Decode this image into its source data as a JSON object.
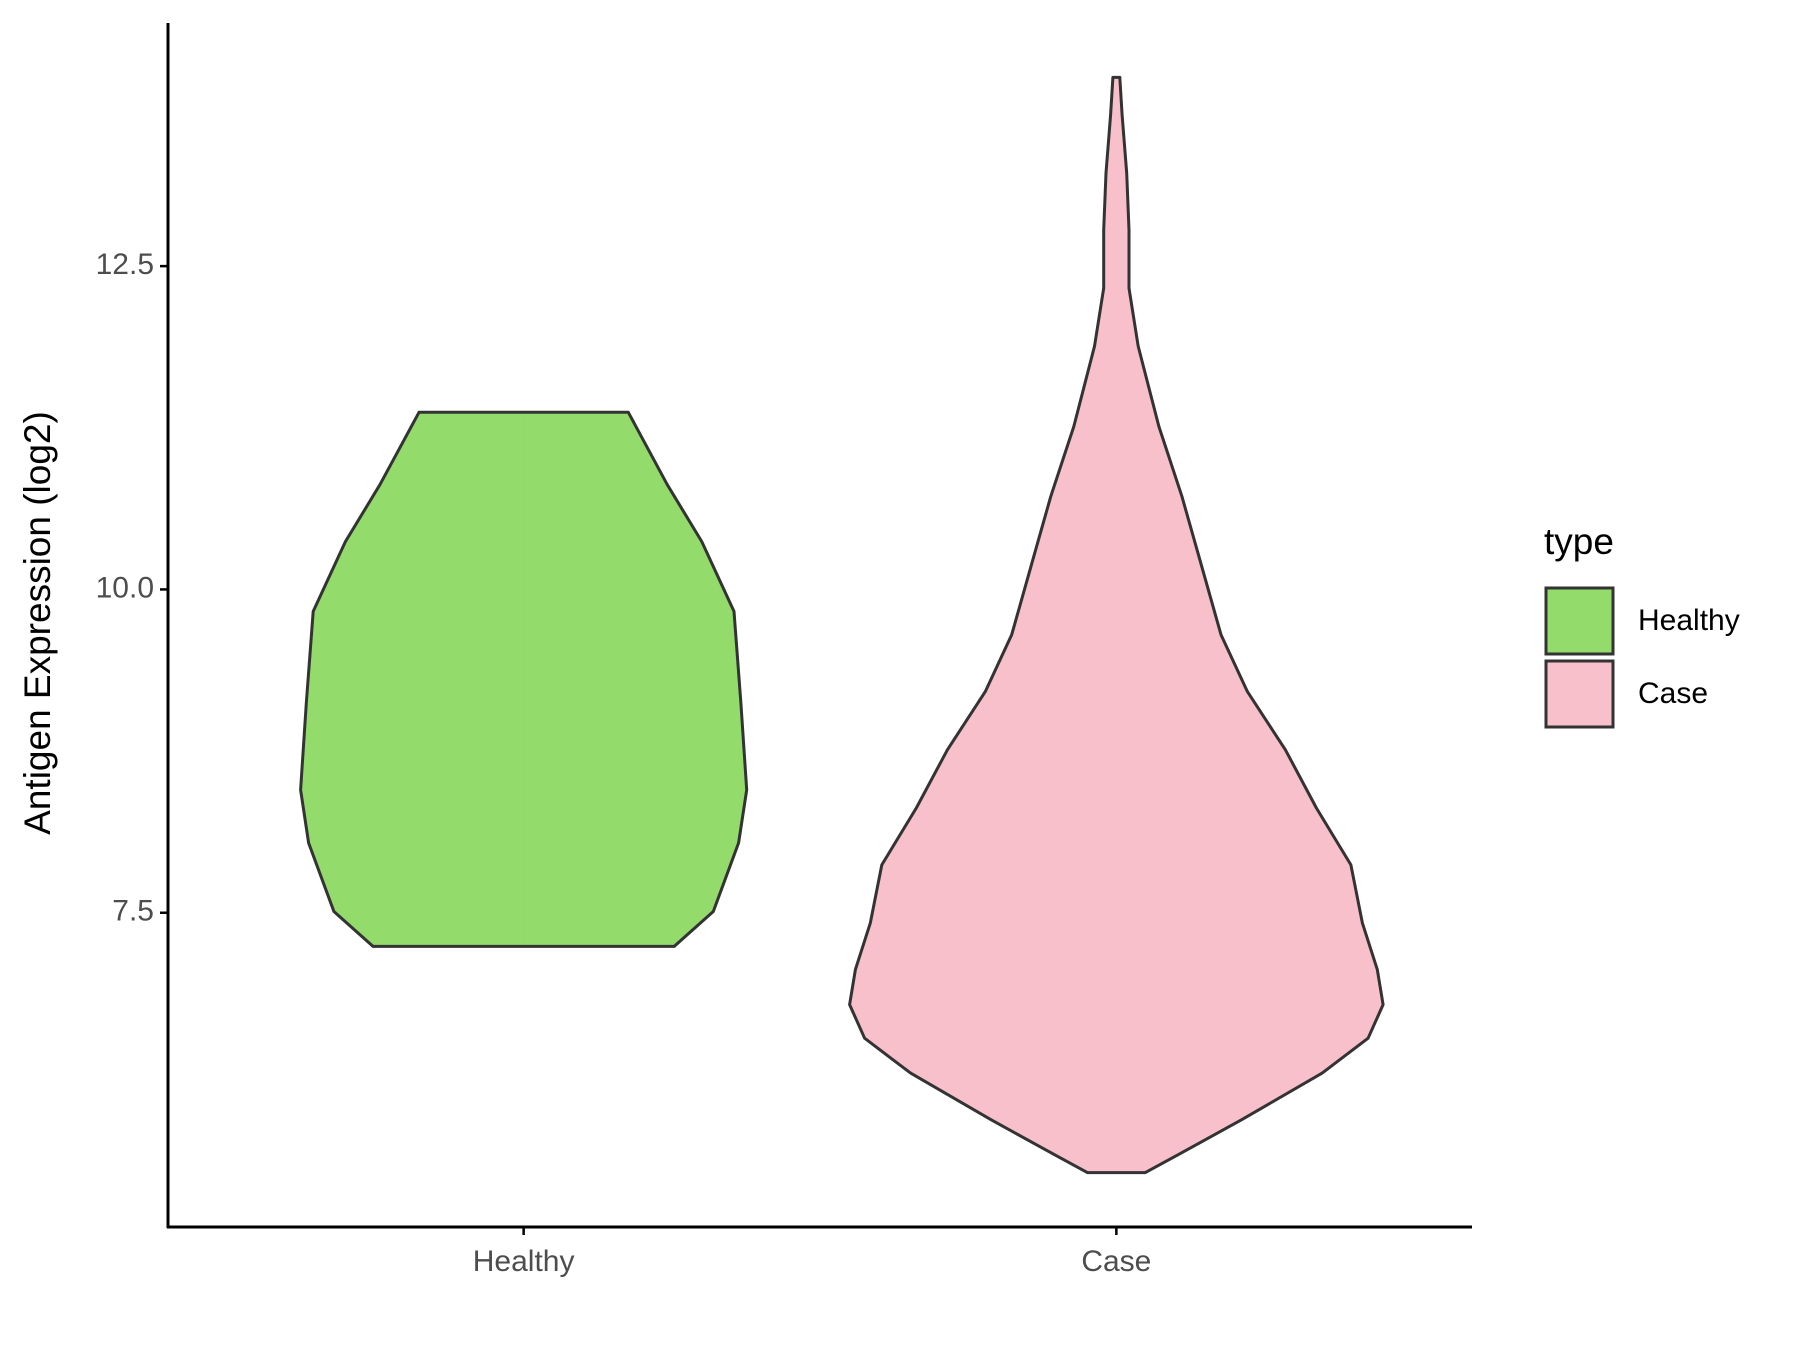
{
  "chart_data": {
    "type": "violin",
    "ylabel": "Antigen Expression (log2)",
    "categories": [
      "Healthy",
      "Case"
    ],
    "legend_title": "type",
    "legend_position": "right",
    "ylim": [
      5.07,
      14.38
    ],
    "yticks": [
      7.5,
      {
        "value": 10,
        "label": "10.0"
      },
      12.5
    ],
    "series": [
      {
        "name": "Healthy",
        "color": "#93db6b",
        "y": [
          7.24,
          7.51,
          8.04,
          8.45,
          9.12,
          9.83,
          10.37,
          10.81,
          11.37
        ],
        "density": [
          1.31,
          1.65,
          1.87,
          1.94,
          1.89,
          1.83,
          1.55,
          1.25,
          0.91
        ]
      },
      {
        "name": "Case",
        "color": "#f7c0cb",
        "y": [
          5.49,
          5.63,
          5.9,
          6.26,
          6.53,
          6.79,
          7.06,
          7.42,
          7.87,
          8.31,
          8.76,
          9.21,
          9.65,
          10.28,
          10.72,
          11.26,
          11.88,
          12.33,
          12.78,
          13.22,
          13.67,
          13.96
        ],
        "density": [
          0.25,
          0.54,
          1.09,
          1.79,
          2.19,
          2.32,
          2.27,
          2.14,
          2.04,
          1.74,
          1.47,
          1.14,
          0.91,
          0.71,
          0.57,
          0.37,
          0.19,
          0.11,
          0.11,
          0.09,
          0.05,
          0.03
        ]
      }
    ]
  }
}
